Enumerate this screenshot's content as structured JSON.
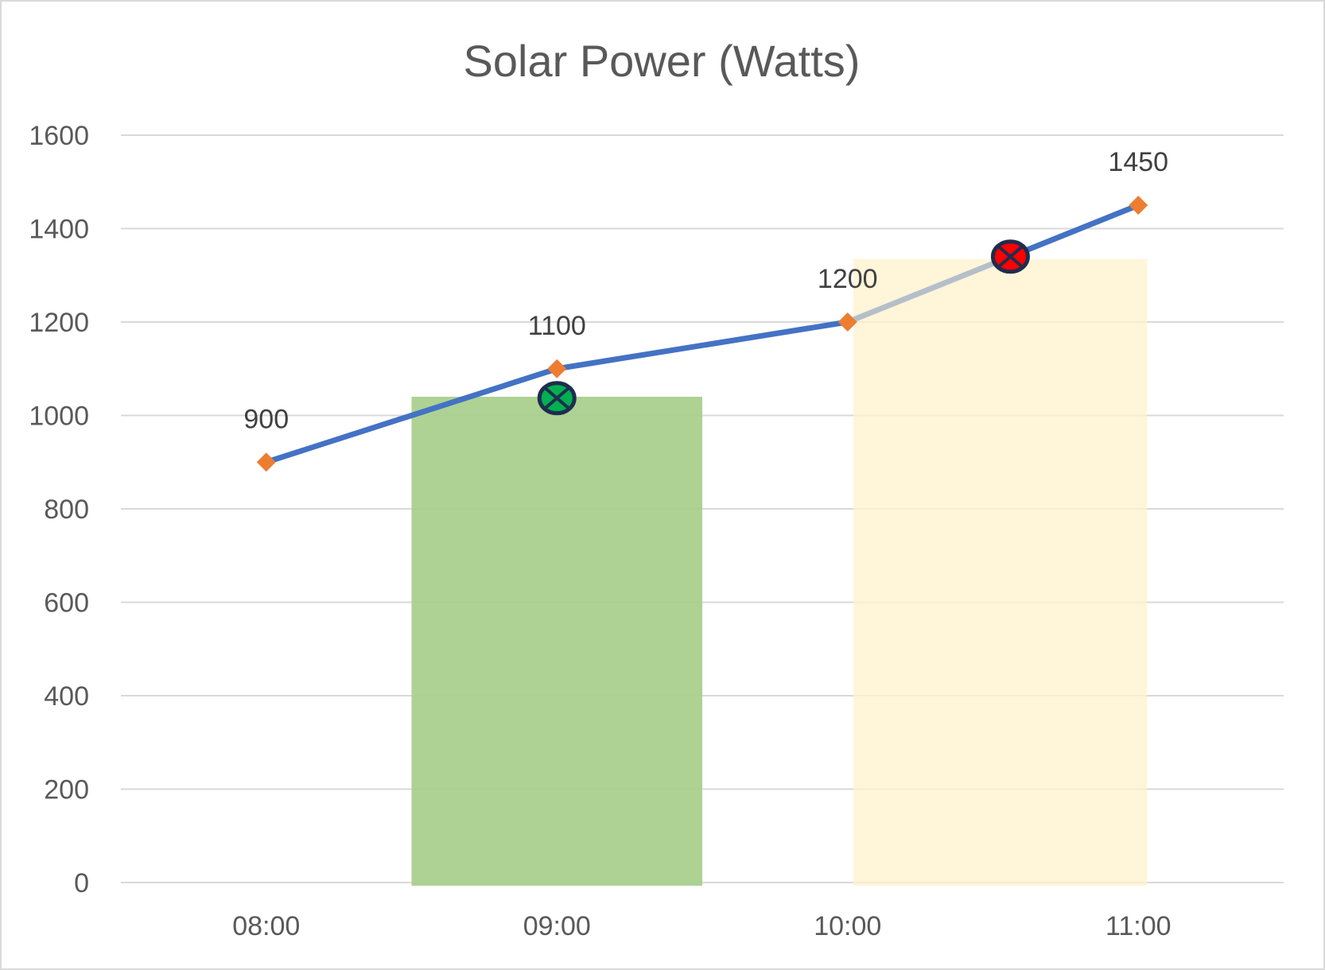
{
  "chart_data": {
    "type": "line",
    "title": "Solar Power (Watts)",
    "xlabel": "",
    "ylabel": "",
    "categories": [
      "08:00",
      "09:00",
      "10:00",
      "11:00"
    ],
    "series": [
      {
        "name": "Solar Power (Watts)",
        "values": [
          900,
          1100,
          1200,
          1450
        ],
        "data_labels": [
          "900",
          "1100",
          "1200",
          "1450"
        ]
      }
    ],
    "yticks": [
      "0",
      "200",
      "400",
      "600",
      "800",
      "1000",
      "1200",
      "1400",
      "1600"
    ],
    "ylim": [
      0,
      1600
    ],
    "grid": true,
    "legend": "none",
    "annotations": {
      "highlight_bands": [
        {
          "name": "green-band",
          "from_category": 0.5,
          "to_category": 1.5,
          "top_value": 1040,
          "color": "#a9d08e"
        },
        {
          "name": "yellow-band",
          "from_category": 2.02,
          "to_category": 3.03,
          "top_value": 1335,
          "color": "#fff2cc"
        }
      ],
      "markers": [
        {
          "name": "check-marker",
          "category": 1.0,
          "value": 1037,
          "fill": "#00b050",
          "stroke": "#1f2d4e"
        },
        {
          "name": "error-marker",
          "category": 2.56,
          "value": 1340,
          "fill": "#ff0000",
          "stroke": "#1f2d4e"
        }
      ],
      "colors": {
        "line": "#4472c4",
        "point": "#ed7d31",
        "line_faded": "#b4bfca"
      }
    }
  }
}
